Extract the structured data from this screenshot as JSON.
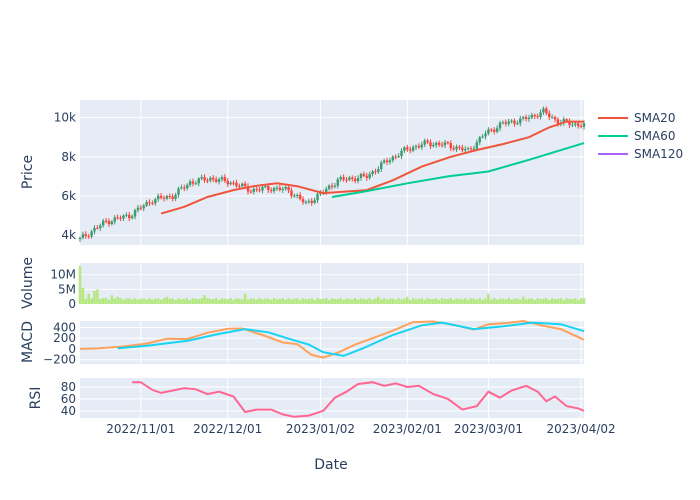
{
  "chart_data": {
    "type": "candlestick-with-indicators",
    "xlabel": "Date",
    "x_range": [
      "2022-10-11",
      "2023-04-03"
    ],
    "x_ticks": [
      {
        "date": "2022-11-01",
        "label": "2022/11/01"
      },
      {
        "date": "2022-12-01",
        "label": "2022/12/01"
      },
      {
        "date": "2023-01-02",
        "label": "2023/01/02"
      },
      {
        "date": "2023-02-01",
        "label": "2023/02/01"
      },
      {
        "date": "2023-03-01",
        "label": "2023/03/01"
      },
      {
        "date": "2023-04-02",
        "label": "2023/04/02"
      }
    ],
    "legend": {
      "position": "right",
      "items": [
        {
          "name": "SMA20",
          "color": "#ef553b"
        },
        {
          "name": "SMA60",
          "color": "#00cc96"
        },
        {
          "name": "SMA120",
          "color": "#ab63fa"
        }
      ]
    },
    "panels": {
      "price": {
        "ylabel": "Price",
        "ylim": [
          3500,
          10900
        ],
        "ticks": [
          {
            "v": 4000,
            "label": "4k"
          },
          {
            "v": 6000,
            "label": "6k"
          },
          {
            "v": 8000,
            "label": "8k"
          },
          {
            "v": 10000,
            "label": "10k"
          }
        ],
        "increasing_color": "#3d9970",
        "decreasing_color": "#ff4136",
        "candle_anchors": [
          [
            "2022-10-11",
            3800
          ],
          [
            "2022-10-20",
            4700
          ],
          [
            "2022-10-28",
            5000
          ],
          [
            "2022-11-05",
            5800
          ],
          [
            "2022-11-12",
            6000
          ],
          [
            "2022-11-18",
            6700
          ],
          [
            "2022-11-25",
            6900
          ],
          [
            "2022-12-02",
            6700
          ],
          [
            "2022-12-09",
            6300
          ],
          [
            "2022-12-16",
            6400
          ],
          [
            "2022-12-22",
            6300
          ],
          [
            "2022-12-28",
            5600
          ],
          [
            "2023-01-02",
            6100
          ],
          [
            "2023-01-08",
            6800
          ],
          [
            "2023-01-18",
            7000
          ],
          [
            "2023-01-25",
            7800
          ],
          [
            "2023-02-01",
            8400
          ],
          [
            "2023-02-08",
            8700
          ],
          [
            "2023-02-15",
            8600
          ],
          [
            "2023-02-22",
            8300
          ],
          [
            "2023-02-28",
            9200
          ],
          [
            "2023-03-06",
            9700
          ],
          [
            "2023-03-13",
            9900
          ],
          [
            "2023-03-20",
            10300
          ],
          [
            "2023-03-25",
            9800
          ],
          [
            "2023-04-03",
            9600
          ]
        ],
        "sma20": [
          [
            "2022-11-08",
            5100
          ],
          [
            "2022-11-16",
            5450
          ],
          [
            "2022-11-24",
            5950
          ],
          [
            "2022-12-03",
            6300
          ],
          [
            "2022-12-10",
            6500
          ],
          [
            "2022-12-18",
            6650
          ],
          [
            "2022-12-25",
            6500
          ],
          [
            "2023-01-03",
            6150
          ],
          [
            "2023-01-08",
            6200
          ],
          [
            "2023-01-18",
            6300
          ],
          [
            "2023-01-27",
            6800
          ],
          [
            "2023-02-06",
            7500
          ],
          [
            "2023-02-16",
            8000
          ],
          [
            "2023-02-25",
            8350
          ],
          [
            "2023-03-06",
            8650
          ],
          [
            "2023-03-15",
            9000
          ],
          [
            "2023-03-22",
            9500
          ],
          [
            "2023-03-28",
            9800
          ],
          [
            "2023-04-03",
            9800
          ]
        ],
        "sma60": [
          [
            "2023-01-06",
            5950
          ],
          [
            "2023-01-18",
            6250
          ],
          [
            "2023-02-01",
            6650
          ],
          [
            "2023-02-15",
            7000
          ],
          [
            "2023-03-01",
            7250
          ],
          [
            "2023-03-15",
            7850
          ],
          [
            "2023-04-03",
            8700
          ]
        ],
        "sma120": []
      },
      "volume": {
        "ylabel": "Volume",
        "ylim": [
          0,
          14000000
        ],
        "ticks": [
          {
            "v": 0,
            "label": "0"
          },
          {
            "v": 5000000,
            "label": "5M"
          },
          {
            "v": 10000000,
            "label": "10M"
          }
        ],
        "color": "#b6e880",
        "spikes": [
          [
            "2022-10-11",
            13000000
          ],
          [
            "2022-10-12",
            5500000
          ],
          [
            "2022-10-14",
            3500000
          ],
          [
            "2022-10-16",
            4500000
          ],
          [
            "2022-10-17",
            5000000
          ],
          [
            "2022-10-19",
            2000000
          ],
          [
            "2022-10-22",
            3000000
          ],
          [
            "2022-10-24",
            2500000
          ],
          [
            "2022-11-10",
            2500000
          ],
          [
            "2022-11-23",
            3000000
          ],
          [
            "2022-12-07",
            3500000
          ],
          [
            "2023-01-22",
            2500000
          ],
          [
            "2023-02-01",
            2500000
          ],
          [
            "2023-03-01",
            3500000
          ],
          [
            "2023-03-03",
            2000000
          ],
          [
            "2023-03-13",
            2500000
          ],
          [
            "2023-04-03",
            2000000
          ]
        ],
        "baseline": 1300000
      },
      "macd": {
        "ylabel": "MACD",
        "ylim": [
          -280,
          520
        ],
        "ticks": [
          {
            "v": -200,
            "label": "−200"
          },
          {
            "v": 0,
            "label": "0"
          },
          {
            "v": 200,
            "label": "200"
          },
          {
            "v": 400,
            "label": "400"
          }
        ],
        "macd_color": "#ffa15a",
        "signal_color": "#19d3f3",
        "macd_line": [
          [
            "2022-10-11",
            0
          ],
          [
            "2022-10-17",
            10
          ],
          [
            "2022-10-25",
            40
          ],
          [
            "2022-11-03",
            100
          ],
          [
            "2022-11-10",
            190
          ],
          [
            "2022-11-17",
            185
          ],
          [
            "2022-11-24",
            300
          ],
          [
            "2022-12-01",
            375
          ],
          [
            "2022-12-06",
            380
          ],
          [
            "2022-12-13",
            260
          ],
          [
            "2022-12-20",
            120
          ],
          [
            "2022-12-25",
            90
          ],
          [
            "2022-12-30",
            -110
          ],
          [
            "2023-01-03",
            -160
          ],
          [
            "2023-01-08",
            -70
          ],
          [
            "2023-01-14",
            80
          ],
          [
            "2023-01-20",
            200
          ],
          [
            "2023-01-27",
            340
          ],
          [
            "2023-02-03",
            500
          ],
          [
            "2023-02-10",
            510
          ],
          [
            "2023-02-17",
            450
          ],
          [
            "2023-02-24",
            360
          ],
          [
            "2023-03-01",
            460
          ],
          [
            "2023-03-07",
            480
          ],
          [
            "2023-03-13",
            520
          ],
          [
            "2023-03-20",
            430
          ],
          [
            "2023-03-26",
            370
          ],
          [
            "2023-04-03",
            170
          ]
        ],
        "signal_line": [
          [
            "2022-10-24",
            10
          ],
          [
            "2022-11-03",
            60
          ],
          [
            "2022-11-17",
            150
          ],
          [
            "2022-11-28",
            280
          ],
          [
            "2022-12-07",
            370
          ],
          [
            "2022-12-15",
            310
          ],
          [
            "2022-12-22",
            190
          ],
          [
            "2022-12-29",
            80
          ],
          [
            "2023-01-03",
            -60
          ],
          [
            "2023-01-10",
            -130
          ],
          [
            "2023-01-17",
            20
          ],
          [
            "2023-01-27",
            260
          ],
          [
            "2023-02-06",
            440
          ],
          [
            "2023-02-13",
            490
          ],
          [
            "2023-02-24",
            370
          ],
          [
            "2023-03-06",
            420
          ],
          [
            "2023-03-16",
            490
          ],
          [
            "2023-03-26",
            460
          ],
          [
            "2023-04-03",
            330
          ]
        ]
      },
      "rsi": {
        "ylabel": "RSI",
        "ylim": [
          28,
          95
        ],
        "ticks": [
          {
            "v": 40,
            "label": "40"
          },
          {
            "v": 60,
            "label": "60"
          },
          {
            "v": 80,
            "label": "80"
          }
        ],
        "color": "#ff6692",
        "line": [
          [
            "2022-10-29",
            88
          ],
          [
            "2022-11-01",
            88
          ],
          [
            "2022-11-05",
            75
          ],
          [
            "2022-11-08",
            70
          ],
          [
            "2022-11-12",
            74
          ],
          [
            "2022-11-16",
            78
          ],
          [
            "2022-11-20",
            76
          ],
          [
            "2022-11-24",
            68
          ],
          [
            "2022-11-28",
            72
          ],
          [
            "2022-12-03",
            64
          ],
          [
            "2022-12-07",
            38
          ],
          [
            "2022-12-11",
            42
          ],
          [
            "2022-12-16",
            42
          ],
          [
            "2022-12-20",
            34
          ],
          [
            "2022-12-24",
            30
          ],
          [
            "2022-12-29",
            32
          ],
          [
            "2023-01-03",
            40
          ],
          [
            "2023-01-07",
            62
          ],
          [
            "2023-01-11",
            72
          ],
          [
            "2023-01-15",
            85
          ],
          [
            "2023-01-20",
            88
          ],
          [
            "2023-01-24",
            82
          ],
          [
            "2023-01-28",
            86
          ],
          [
            "2023-02-01",
            80
          ],
          [
            "2023-02-05",
            82
          ],
          [
            "2023-02-10",
            68
          ],
          [
            "2023-02-15",
            60
          ],
          [
            "2023-02-20",
            42
          ],
          [
            "2023-02-25",
            48
          ],
          [
            "2023-03-01",
            72
          ],
          [
            "2023-03-05",
            62
          ],
          [
            "2023-03-09",
            74
          ],
          [
            "2023-03-14",
            82
          ],
          [
            "2023-03-18",
            72
          ],
          [
            "2023-03-21",
            56
          ],
          [
            "2023-03-24",
            64
          ],
          [
            "2023-03-28",
            48
          ],
          [
            "2023-04-01",
            44
          ],
          [
            "2023-04-03",
            40
          ]
        ]
      }
    }
  }
}
